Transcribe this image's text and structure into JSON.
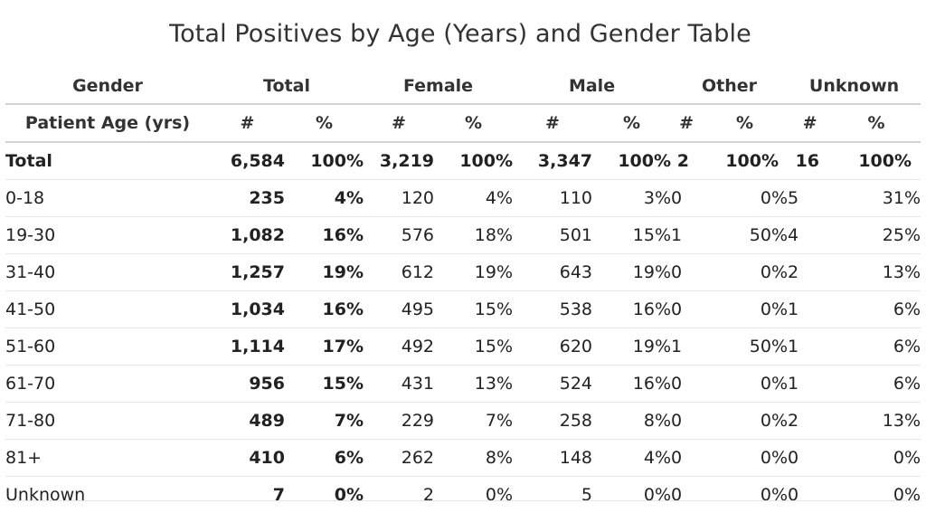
{
  "title": "Total Positives by Age (Years) and Gender Table",
  "header_groups": {
    "first": "Gender",
    "total": "Total",
    "female": "Female",
    "male": "Male",
    "other": "Other",
    "unknown": "Unknown"
  },
  "sub_headers": {
    "first": "Patient Age (yrs)",
    "count": "#",
    "percent": "%"
  },
  "rows": [
    {
      "label": "Total",
      "total_n": "6,584",
      "total_p": "100%",
      "female_n": "3,219",
      "female_p": "100%",
      "male_n": "3,347",
      "male_p": "100%",
      "other_n": "2",
      "other_p": "100%",
      "unknown_n": "16",
      "unknown_p": "100%"
    },
    {
      "label": "0-18",
      "total_n": "235",
      "total_p": "4%",
      "female_n": "120",
      "female_p": "4%",
      "male_n": "110",
      "male_p": "3%",
      "other_n": "0",
      "other_p": "0%",
      "unknown_n": "5",
      "unknown_p": "31%"
    },
    {
      "label": "19-30",
      "total_n": "1,082",
      "total_p": "16%",
      "female_n": "576",
      "female_p": "18%",
      "male_n": "501",
      "male_p": "15%",
      "other_n": "1",
      "other_p": "50%",
      "unknown_n": "4",
      "unknown_p": "25%"
    },
    {
      "label": "31-40",
      "total_n": "1,257",
      "total_p": "19%",
      "female_n": "612",
      "female_p": "19%",
      "male_n": "643",
      "male_p": "19%",
      "other_n": "0",
      "other_p": "0%",
      "unknown_n": "2",
      "unknown_p": "13%"
    },
    {
      "label": "41-50",
      "total_n": "1,034",
      "total_p": "16%",
      "female_n": "495",
      "female_p": "15%",
      "male_n": "538",
      "male_p": "16%",
      "other_n": "0",
      "other_p": "0%",
      "unknown_n": "1",
      "unknown_p": "6%"
    },
    {
      "label": "51-60",
      "total_n": "1,114",
      "total_p": "17%",
      "female_n": "492",
      "female_p": "15%",
      "male_n": "620",
      "male_p": "19%",
      "other_n": "1",
      "other_p": "50%",
      "unknown_n": "1",
      "unknown_p": "6%"
    },
    {
      "label": "61-70",
      "total_n": "956",
      "total_p": "15%",
      "female_n": "431",
      "female_p": "13%",
      "male_n": "524",
      "male_p": "16%",
      "other_n": "0",
      "other_p": "0%",
      "unknown_n": "1",
      "unknown_p": "6%"
    },
    {
      "label": "71-80",
      "total_n": "489",
      "total_p": "7%",
      "female_n": "229",
      "female_p": "7%",
      "male_n": "258",
      "male_p": "8%",
      "other_n": "0",
      "other_p": "0%",
      "unknown_n": "2",
      "unknown_p": "13%"
    },
    {
      "label": "81+",
      "total_n": "410",
      "total_p": "6%",
      "female_n": "262",
      "female_p": "8%",
      "male_n": "148",
      "male_p": "4%",
      "other_n": "0",
      "other_p": "0%",
      "unknown_n": "0",
      "unknown_p": "0%"
    },
    {
      "label": "Unknown",
      "total_n": "7",
      "total_p": "0%",
      "female_n": "2",
      "female_p": "0%",
      "male_n": "5",
      "male_p": "0%",
      "other_n": "0",
      "other_p": "0%",
      "unknown_n": "0",
      "unknown_p": "0%"
    }
  ]
}
